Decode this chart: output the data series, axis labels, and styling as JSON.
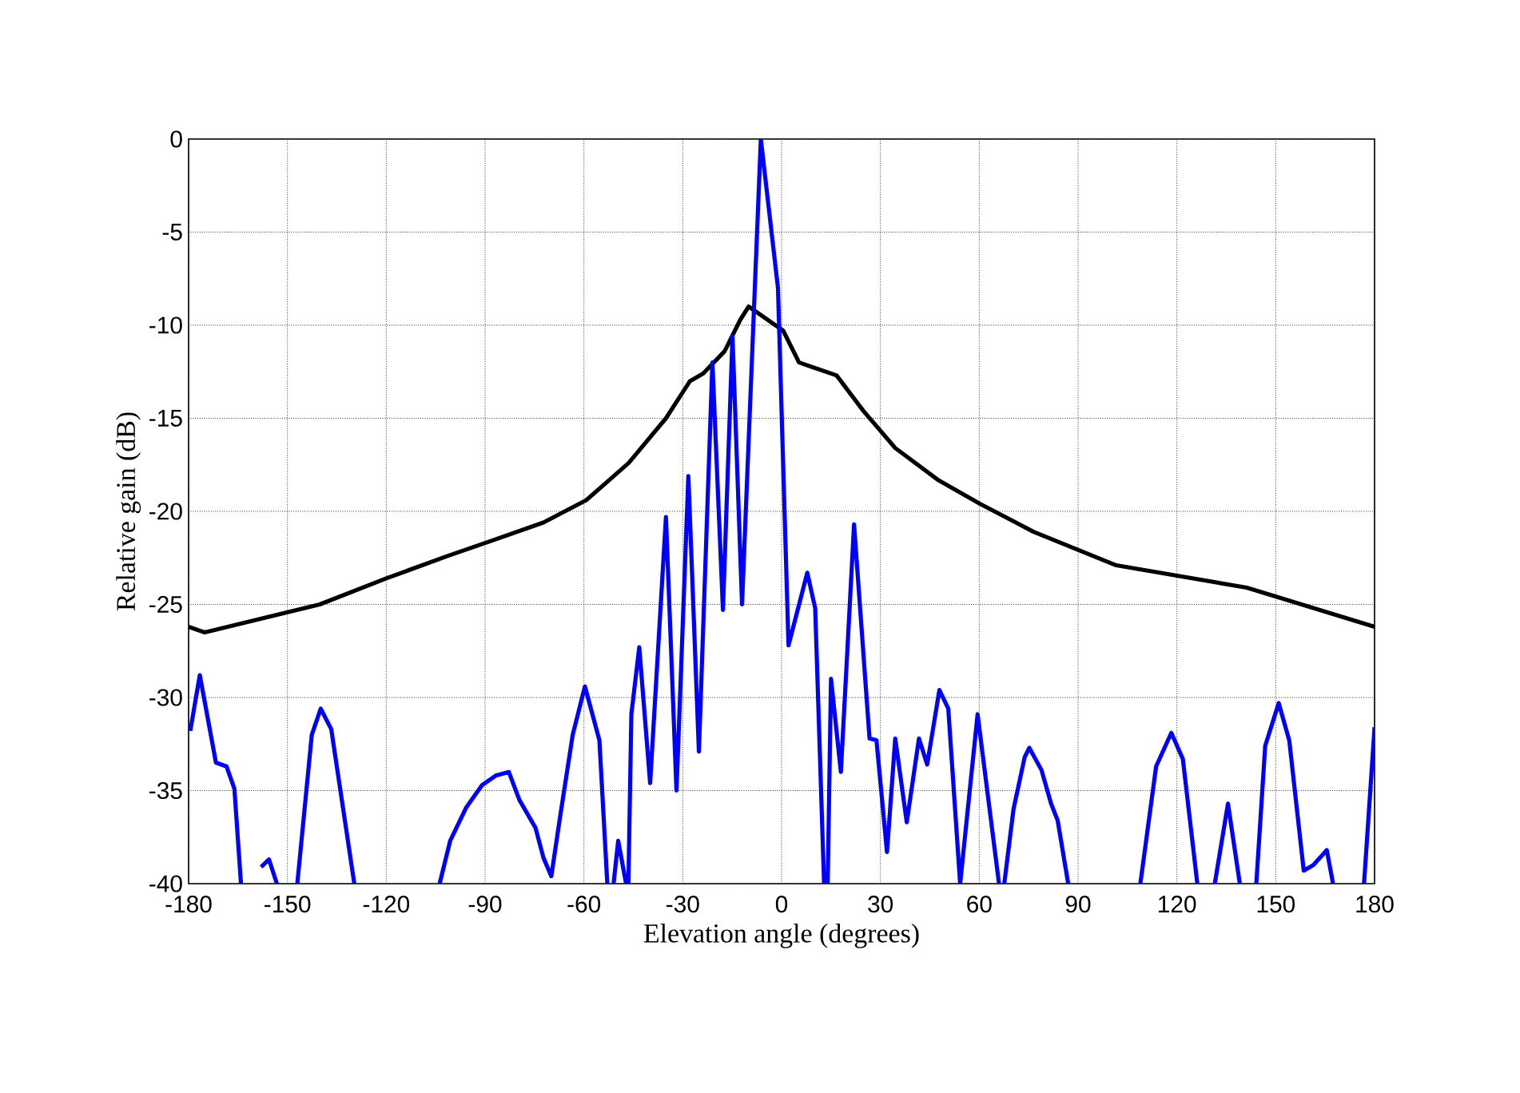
{
  "chart_data": {
    "type": "line",
    "xlabel": "Elevation angle (degrees)",
    "ylabel": "Relative gain (dB)",
    "xlim": [
      -180,
      180
    ],
    "ylim": [
      -40,
      0
    ],
    "xticks": [
      -180,
      -150,
      -120,
      -90,
      -60,
      -30,
      0,
      30,
      60,
      90,
      120,
      150,
      180
    ],
    "yticks": [
      -40,
      -35,
      -30,
      -25,
      -20,
      -15,
      -10,
      -5,
      0
    ],
    "grid": true,
    "marker": "none",
    "line_style": "solid",
    "series": [
      {
        "color": "#000000",
        "x": [
          -180,
          -175.1,
          -140.2,
          -120,
          -101.4,
          -90,
          -72.3,
          -59.3,
          -46.4,
          -35.1,
          -27.8,
          -23.8,
          -17.3,
          -12.5,
          -10,
          0.5,
          5.3,
          16.7,
          24.8,
          34.5,
          47.4,
          60.3,
          76.5,
          101.6,
          141.2,
          180
        ],
        "values": [
          -26.2,
          -26.5,
          -25.0,
          -23.6,
          -22.4,
          -21.7,
          -20.6,
          -19.4,
          -17.4,
          -15.0,
          -13.0,
          -12.6,
          -11.4,
          -9.7,
          -9.0,
          -10.3,
          -12.0,
          -12.7,
          -14.6,
          -16.6,
          -18.3,
          -19.6,
          -21.1,
          -22.9,
          -24.1,
          -26.2
        ]
      },
      {
        "color": "#0000ff",
        "x": [
          -179.5,
          -176.6,
          -171.7,
          -168.5,
          -166.1,
          -164.1,
          -160,
          -158,
          -155.6,
          -153.2,
          -150,
          -147,
          -142.6,
          -139.9,
          -136.7,
          -129.7,
          -115,
          -103.8,
          -100.6,
          -95.7,
          -90.9,
          -86.8,
          -82.8,
          -79.6,
          -74.7,
          -72.3,
          -69.9,
          -67.4,
          -63.4,
          -59.7,
          -55.3,
          -52.9,
          -52,
          -51,
          -49.6,
          -47.2,
          -46.8,
          -46.5,
          -45.6,
          -43.2,
          -39.9,
          -35.1,
          -31.9,
          -28.3,
          -25.1,
          -21.0,
          -17.8,
          -14.9,
          -12.0,
          -6.3,
          -1.1,
          2.1,
          7.8,
          10.2,
          12.9,
          13.5,
          14.0,
          15.0,
          18.0,
          22.0,
          26.7,
          28.8,
          32.0,
          34.5,
          38.0,
          41.7,
          44.2,
          47.9,
          50.6,
          54.2,
          59.5,
          66.0,
          67,
          67.6,
          70.4,
          73.8,
          75.2,
          78.9,
          81.8,
          83.8,
          87.0,
          100,
          108.9,
          113.7,
          118.3,
          121.8,
          126.2,
          129,
          131.5,
          135.5,
          139.1,
          141,
          144.1,
          146.8,
          150.9,
          154.1,
          158.5,
          161.4,
          165.5,
          167.4,
          172,
          176.8,
          180
        ],
        "values": [
          -31.8,
          -28.8,
          -33.5,
          -33.7,
          -34.9,
          -40,
          null,
          -39.1,
          -38.7,
          -40,
          null,
          -40,
          -32.0,
          -30.6,
          -31.7,
          -40,
          null,
          -40,
          -37.7,
          -35.9,
          -34.7,
          -34.2,
          -34.0,
          -35.5,
          -37.0,
          -38.6,
          -39.6,
          -36.6,
          -32.0,
          -29.4,
          -32.3,
          -40,
          null,
          -40,
          -37.7,
          -40,
          null,
          -40,
          -30.9,
          -27.3,
          -34.6,
          -20.3,
          -35.0,
          -18.1,
          -32.9,
          -12.0,
          -25.3,
          -10.6,
          -25.0,
          0,
          -8.0,
          -27.2,
          -23.3,
          -25.2,
          -40,
          null,
          -40,
          -29.0,
          -34.0,
          -20.7,
          -32.2,
          -32.3,
          -38.3,
          -32.2,
          -36.7,
          -32.2,
          -33.6,
          -29.6,
          -30.6,
          -40,
          -30.9,
          -40,
          null,
          -40,
          -36.0,
          -33.2,
          -32.7,
          -33.9,
          -35.7,
          -36.6,
          -40,
          null,
          -40,
          -33.7,
          -31.9,
          -33.3,
          -40,
          null,
          -40,
          -35.7,
          -40,
          null,
          -40,
          -32.6,
          -30.3,
          -32.3,
          -39.3,
          -39.0,
          -38.2,
          -40,
          null,
          -40,
          -31.6
        ]
      }
    ]
  }
}
